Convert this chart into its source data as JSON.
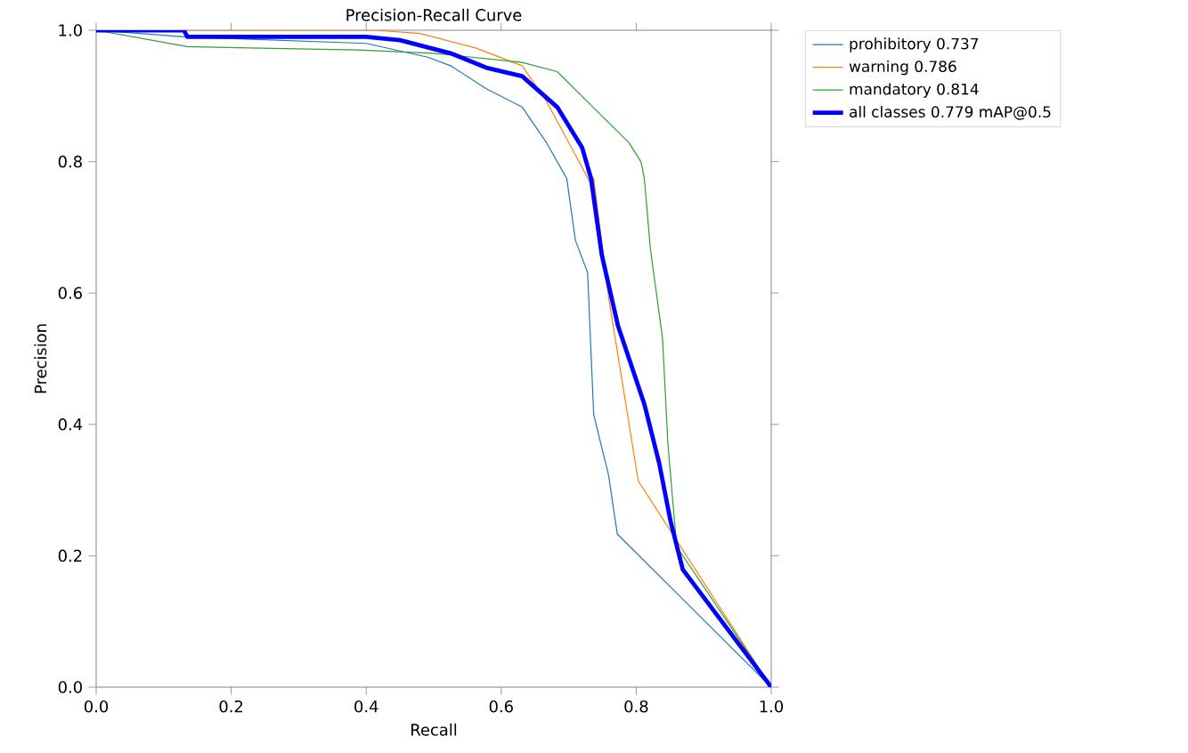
{
  "chart_data": {
    "type": "line",
    "title": "Precision-Recall Curve",
    "xlabel": "Recall",
    "ylabel": "Precision",
    "xlim": [
      0,
      1
    ],
    "ylim": [
      0,
      1
    ],
    "xticks": [
      {
        "value": 0,
        "label": "0.0"
      },
      {
        "value": 0.2,
        "label": "0.2"
      },
      {
        "value": 0.4,
        "label": "0.4"
      },
      {
        "value": 0.6,
        "label": "0.6"
      },
      {
        "value": 0.8,
        "label": "0.8"
      },
      {
        "value": 1,
        "label": "1.0"
      }
    ],
    "yticks": [
      {
        "value": 0,
        "label": "0.0"
      },
      {
        "value": 0.2,
        "label": "0.2"
      },
      {
        "value": 0.4,
        "label": "0.4"
      },
      {
        "value": 0.6,
        "label": "0.6"
      },
      {
        "value": 0.8,
        "label": "0.8"
      },
      {
        "value": 1,
        "label": "1.0"
      }
    ],
    "legend": "top right",
    "grid": false,
    "series": [
      {
        "name": "prohibitory 0.737",
        "color": "#1f77b4",
        "x": [
          0,
          0.13,
          0.4,
          0.491,
          0.525,
          0.578,
          0.631,
          0.667,
          0.694,
          0.697,
          0.71,
          0.728,
          0.737,
          0.759,
          0.772,
          1.0
        ],
        "values": [
          1.0,
          0.99,
          0.98,
          0.959,
          0.946,
          0.911,
          0.883,
          0.829,
          0.78,
          0.775,
          0.68,
          0.631,
          0.415,
          0.323,
          0.233,
          0.0
        ]
      },
      {
        "name": "warning 0.786",
        "color": "#ff7f0e",
        "x": [
          0,
          0.414,
          0.48,
          0.562,
          0.631,
          0.667,
          0.71,
          0.736,
          0.737,
          0.759,
          0.803,
          1.0
        ],
        "values": [
          1.0,
          1.0,
          0.995,
          0.973,
          0.946,
          0.892,
          0.81,
          0.76,
          0.775,
          0.594,
          0.314,
          0.0
        ]
      },
      {
        "name": "mandatory 0.814",
        "color": "#2ca02c",
        "x": [
          0,
          0.135,
          0.387,
          0.5,
          0.631,
          0.683,
          0.736,
          0.789,
          0.807,
          0.812,
          0.821,
          0.839,
          0.847,
          0.86,
          1.0
        ],
        "values": [
          1.0,
          0.975,
          0.97,
          0.965,
          0.951,
          0.937,
          0.883,
          0.829,
          0.8,
          0.775,
          0.667,
          0.531,
          0.369,
          0.214,
          0.0
        ]
      },
      {
        "name": "all classes 0.779 mAP@0.5",
        "color": "#0000ff",
        "x": [
          0,
          0.13,
          0.135,
          0.4,
          0.45,
          0.525,
          0.578,
          0.631,
          0.683,
          0.72,
          0.733,
          0.749,
          0.773,
          0.812,
          0.834,
          0.851,
          0.869,
          1.0
        ],
        "values": [
          1.0,
          1.0,
          0.99,
          0.99,
          0.985,
          0.965,
          0.943,
          0.93,
          0.883,
          0.821,
          0.775,
          0.658,
          0.55,
          0.431,
          0.341,
          0.252,
          0.179,
          0.0
        ]
      }
    ]
  }
}
